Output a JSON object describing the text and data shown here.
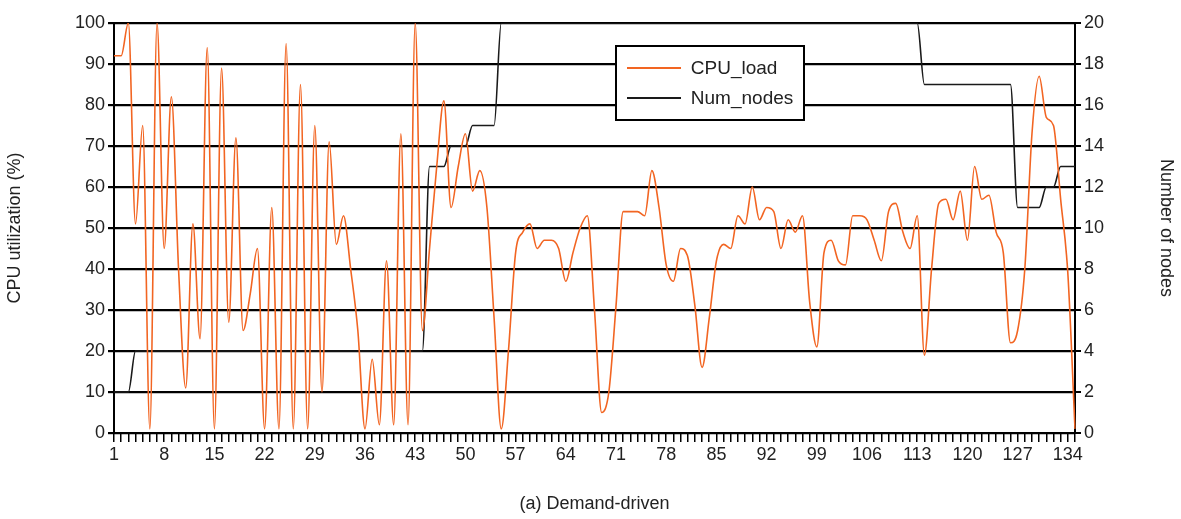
{
  "chart_data": {
    "type": "line",
    "xlabel": "(a) Demand-driven",
    "ylabel": "CPU utilization (%)",
    "y2label": "Number of nodes",
    "categories": [
      "1",
      null,
      null,
      null,
      null,
      null,
      null,
      "8",
      null,
      null,
      null,
      null,
      null,
      null,
      "15",
      null,
      null,
      null,
      null,
      null,
      null,
      "22",
      null,
      null,
      null,
      null,
      null,
      null,
      "29",
      null,
      null,
      null,
      null,
      null,
      null,
      "36",
      null,
      null,
      null,
      null,
      null,
      null,
      "43",
      null,
      null,
      null,
      null,
      null,
      null,
      "50",
      null,
      null,
      null,
      null,
      null,
      null,
      "57",
      null,
      null,
      null,
      null,
      null,
      null,
      "64",
      null,
      null,
      null,
      null,
      null,
      null,
      "71",
      null,
      null,
      null,
      null,
      null,
      null,
      "78",
      null,
      null,
      null,
      null,
      null,
      null,
      "85",
      null,
      null,
      null,
      null,
      null,
      null,
      "92",
      null,
      null,
      null,
      null,
      null,
      null,
      "99",
      null,
      null,
      null,
      null,
      null,
      null,
      "106",
      null,
      null,
      null,
      null,
      null,
      null,
      "113",
      null,
      null,
      null,
      null,
      null,
      null,
      "120",
      null,
      null,
      null,
      null,
      null,
      null,
      "127",
      null,
      null,
      null,
      null,
      null,
      null,
      "134",
      null
    ],
    "series": [
      {
        "name": "CPU_load",
        "color": "#f26522",
        "values": [
          92,
          92,
          100,
          51,
          75,
          1,
          100,
          45,
          82,
          40,
          11,
          51,
          23,
          94,
          1,
          89,
          27,
          72,
          25,
          34,
          45,
          1,
          55,
          1,
          95,
          1,
          85,
          1,
          75,
          10,
          71,
          46,
          53,
          40,
          25,
          1,
          18,
          2,
          42,
          2,
          73,
          2,
          100,
          25,
          45,
          65,
          81,
          55,
          65,
          73,
          59,
          64,
          55,
          28,
          1,
          20,
          44,
          49,
          51,
          45,
          47,
          47,
          45,
          37,
          44,
          50,
          53,
          30,
          5,
          10,
          31,
          54,
          54,
          54,
          53,
          64,
          55,
          41,
          37,
          45,
          43,
          31,
          16,
          28,
          42,
          46,
          45,
          53,
          51,
          60,
          52,
          55,
          54,
          45,
          52,
          49,
          53,
          32,
          21,
          44,
          47,
          42,
          41,
          53,
          53,
          52,
          47,
          42,
          54,
          56,
          49,
          45,
          53,
          19,
          40,
          56,
          57,
          52,
          59,
          47,
          65,
          57,
          58,
          49,
          44,
          22,
          25,
          40,
          73,
          87,
          77,
          75,
          57,
          39,
          1
        ]
      },
      {
        "name": "Num_nodes",
        "color": "#1a1a1a",
        "axis": "y2",
        "values": [
          2,
          2,
          2,
          4,
          4,
          4,
          4,
          4,
          4,
          4,
          4,
          4,
          4,
          4,
          4,
          4,
          4,
          4,
          4,
          4,
          4,
          4,
          4,
          4,
          4,
          4,
          4,
          4,
          4,
          4,
          4,
          4,
          4,
          4,
          4,
          4,
          4,
          4,
          4,
          4,
          4,
          4,
          4,
          4,
          13,
          13,
          13,
          14,
          14,
          14,
          15,
          15,
          15,
          15,
          20,
          20,
          20,
          20,
          20,
          20,
          20,
          20,
          20,
          20,
          20,
          20,
          20,
          20,
          20,
          20,
          20,
          20,
          20,
          20,
          20,
          20,
          20,
          20,
          20,
          20,
          20,
          20,
          20,
          20,
          20,
          20,
          20,
          20,
          20,
          20,
          20,
          20,
          20,
          20,
          20,
          20,
          20,
          20,
          20,
          20,
          20,
          20,
          20,
          20,
          20,
          20,
          20,
          20,
          20,
          20,
          20,
          20,
          20,
          17,
          17,
          17,
          17,
          17,
          17,
          17,
          17,
          17,
          17,
          17,
          17,
          17,
          11,
          11,
          11,
          11,
          12,
          12,
          13,
          13,
          13
        ]
      }
    ],
    "ylim": [
      0,
      100
    ],
    "yticks": [
      0,
      10,
      20,
      30,
      40,
      50,
      60,
      70,
      80,
      90,
      100
    ],
    "y2lim": [
      0,
      20
    ],
    "y2ticks": [
      0,
      2,
      4,
      6,
      8,
      10,
      12,
      14,
      16,
      18,
      20
    ],
    "grid": "y",
    "legend": "top",
    "marker": "none",
    "line_style": "solid"
  }
}
